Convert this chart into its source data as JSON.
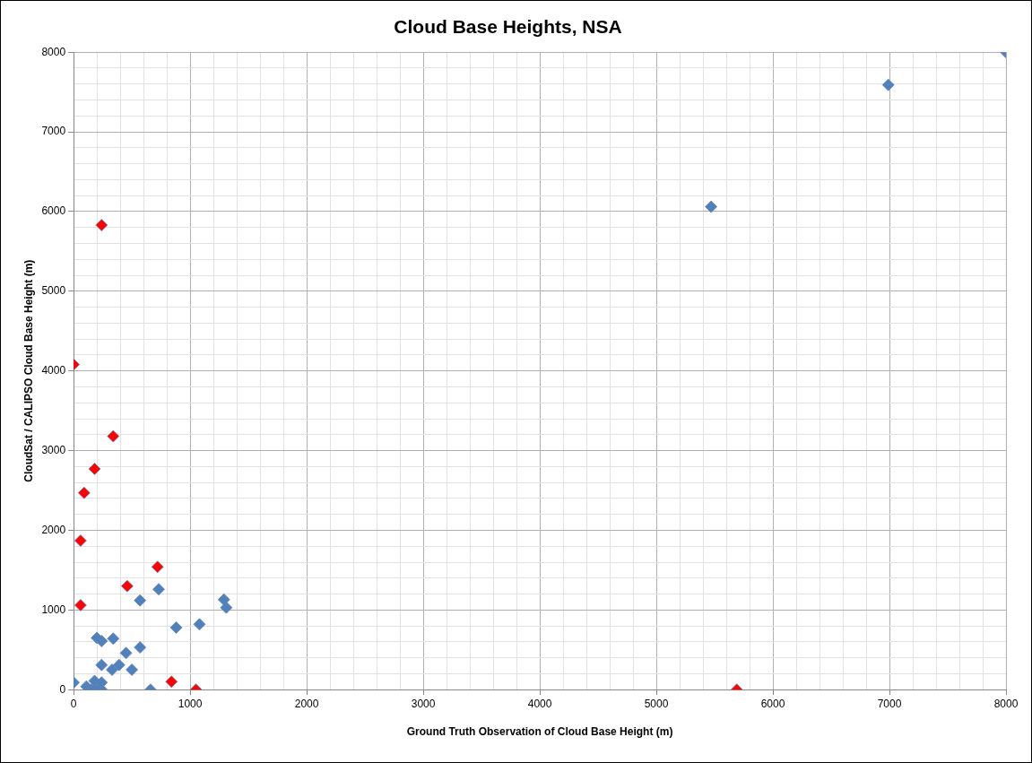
{
  "chart_data": {
    "type": "scatter",
    "title": "Cloud Base Heights, NSA",
    "xlabel": "Ground Truth Observation of Cloud Base Height (m)",
    "ylabel": "CloudSat / CALIPSO Cloud Base Height (m)",
    "xlim": [
      0,
      8000
    ],
    "ylim": [
      0,
      8000
    ],
    "xticks": [
      0,
      {
        "value": 200,
        "label": null
      },
      {
        "value": 400,
        "label": null
      },
      {
        "value": 600,
        "label": null
      },
      {
        "value": 800,
        "label": null
      },
      1000,
      {
        "value": 1200,
        "label": null
      },
      {
        "value": 1400,
        "label": null
      },
      {
        "value": 1600,
        "label": null
      },
      {
        "value": 1800,
        "label": null
      },
      2000,
      {
        "value": 2200,
        "label": null
      },
      {
        "value": 2400,
        "label": null
      },
      {
        "value": 2600,
        "label": null
      },
      {
        "value": 2800,
        "label": null
      },
      3000,
      {
        "value": 3200,
        "label": null
      },
      {
        "value": 3400,
        "label": null
      },
      {
        "value": 3600,
        "label": null
      },
      {
        "value": 3800,
        "label": null
      },
      4000,
      {
        "value": 4200,
        "label": null
      },
      {
        "value": 4400,
        "label": null
      },
      {
        "value": 4600,
        "label": null
      },
      {
        "value": 4800,
        "label": null
      },
      5000,
      {
        "value": 5200,
        "label": null
      },
      {
        "value": 5400,
        "label": null
      },
      {
        "value": 5600,
        "label": null
      },
      {
        "value": 5800,
        "label": null
      },
      6000,
      {
        "value": 6200,
        "label": null
      },
      {
        "value": 6400,
        "label": null
      },
      {
        "value": 6600,
        "label": null
      },
      {
        "value": 6800,
        "label": null
      },
      7000,
      {
        "value": 7200,
        "label": null
      },
      {
        "value": 7400,
        "label": null
      },
      {
        "value": 7600,
        "label": null
      },
      {
        "value": 7800,
        "label": null
      },
      8000
    ],
    "yticks": [
      0,
      {
        "value": 200,
        "label": null
      },
      {
        "value": 400,
        "label": null
      },
      {
        "value": 600,
        "label": null
      },
      {
        "value": 800,
        "label": null
      },
      1000,
      {
        "value": 1200,
        "label": null
      },
      {
        "value": 1400,
        "label": null
      },
      {
        "value": 1600,
        "label": null
      },
      {
        "value": 1800,
        "label": null
      },
      2000,
      {
        "value": 2200,
        "label": null
      },
      {
        "value": 2400,
        "label": null
      },
      {
        "value": 2600,
        "label": null
      },
      {
        "value": 2800,
        "label": null
      },
      3000,
      {
        "value": 3200,
        "label": null
      },
      {
        "value": 3400,
        "label": null
      },
      {
        "value": 3600,
        "label": null
      },
      {
        "value": 3800,
        "label": null
      },
      4000,
      {
        "value": 4200,
        "label": null
      },
      {
        "value": 4400,
        "label": null
      },
      {
        "value": 4600,
        "label": null
      },
      {
        "value": 4800,
        "label": null
      },
      5000,
      {
        "value": 5200,
        "label": null
      },
      {
        "value": 5400,
        "label": null
      },
      {
        "value": 5600,
        "label": null
      },
      {
        "value": 5800,
        "label": null
      },
      6000,
      {
        "value": 6200,
        "label": null
      },
      {
        "value": 6400,
        "label": null
      },
      {
        "value": 6600,
        "label": null
      },
      {
        "value": 6800,
        "label": null
      },
      7000,
      {
        "value": 7200,
        "label": null
      },
      {
        "value": 7400,
        "label": null
      },
      {
        "value": 7600,
        "label": null
      },
      {
        "value": 7800,
        "label": null
      },
      8000
    ],
    "grid": true,
    "marker": "diamond",
    "legend": false,
    "series": [
      {
        "color": "#4f81bd",
        "x": [
          0,
          110,
          180,
          240,
          150,
          180,
          210,
          240,
          200,
          240,
          340,
          570,
          730,
          880,
          1080,
          1290,
          1310,
          570,
          450,
          240,
          390,
          330,
          500,
          660,
          5470,
          6990,
          8000
        ],
        "values": [
          90,
          40,
          110,
          90,
          0,
          0,
          0,
          0,
          650,
          610,
          640,
          1120,
          1260,
          780,
          820,
          1130,
          1030,
          530,
          460,
          310,
          310,
          250,
          250,
          0,
          6060,
          7590,
          8000
        ]
      },
      {
        "color": "#ff0000",
        "x": [
          60,
          60,
          720,
          460,
          840,
          1050,
          240,
          0,
          340,
          180,
          90,
          5690
        ],
        "values": [
          1870,
          1060,
          1540,
          1300,
          100,
          0,
          5830,
          4080,
          3180,
          2770,
          2470,
          0
        ]
      }
    ]
  }
}
